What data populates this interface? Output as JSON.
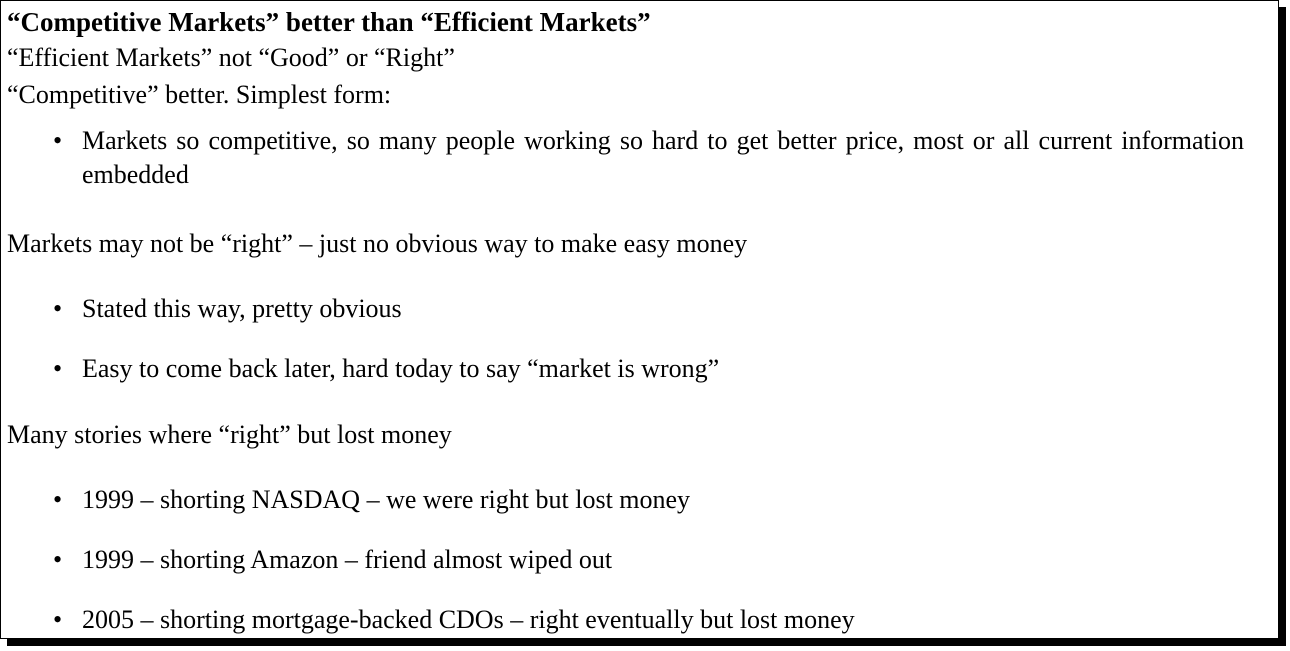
{
  "title": "“Competitive Markets” better than “Efficient Markets”",
  "lines": {
    "efficient_not_good": "“Efficient Markets” not “Good” or “Right”",
    "competitive_better": "“Competitive” better. Simplest form:",
    "markets_may_not_be_right": "Markets may not be “right” – just no obvious way to make easy money",
    "many_stories": "Many stories where “right” but lost money"
  },
  "bullet_symbol": "•",
  "bullets": {
    "competitive_embedded": "Markets so competitive, so many people working so hard to get better price, most or all current information embedded",
    "stated_obvious": "Stated this way, pretty obvious",
    "easy_later": "Easy to come back later, hard today to say “market is wrong”",
    "nasdaq_1999": "1999 – shorting NASDAQ – we were right but lost money",
    "amazon_1999": "1999 – shorting Amazon – friend almost wiped out",
    "cdos_2005": "2005 – shorting mortgage-backed CDOs – right eventually but lost money"
  }
}
